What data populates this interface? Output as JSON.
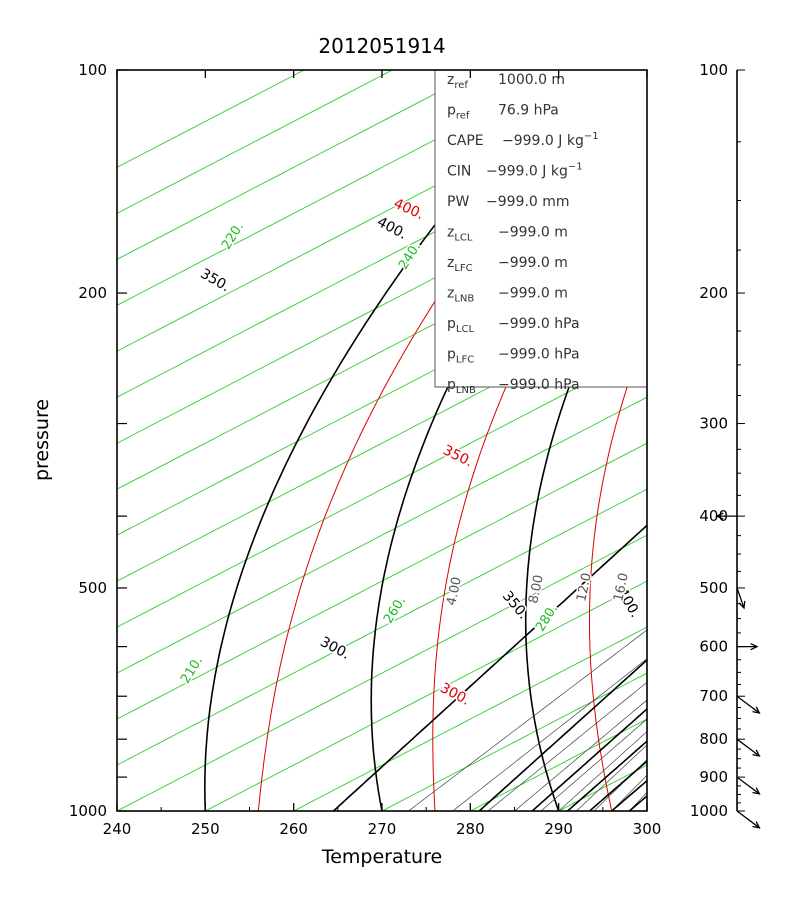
{
  "chart_data": {
    "type": "skew-t",
    "title": "2012051914",
    "xlabel": "Temperature",
    "ylabel": "pressure",
    "x_ticks": [
      "240",
      "250",
      "260",
      "270",
      "280",
      "290",
      "300"
    ],
    "xlim": [
      240,
      300
    ],
    "y_ticks": [
      "100",
      "200",
      "500",
      "1000"
    ],
    "ylim": [
      1000,
      100
    ],
    "y_scale": "log",
    "wind_axis_ticks": [
      "100",
      "200",
      "300",
      "400",
      "500",
      "600",
      "700",
      "800",
      "900",
      "1000"
    ],
    "wind_barbs": [
      {
        "pressure": 400,
        "direction_to": "west",
        "speed": "light"
      },
      {
        "pressure": 500,
        "direction_to": "south-southeast",
        "speed": "light"
      },
      {
        "pressure": 600,
        "direction_to": "east",
        "speed": "light"
      },
      {
        "pressure": 700,
        "direction_to": "southeast",
        "speed": "light"
      },
      {
        "pressure": 800,
        "direction_to": "southeast",
        "speed": "light"
      },
      {
        "pressure": 900,
        "direction_to": "southeast",
        "speed": "light"
      },
      {
        "pressure": 1000,
        "direction_to": "southeast",
        "speed": "light"
      }
    ],
    "isotherm_labels": [
      {
        "value": "210.",
        "color": "#22bb22"
      },
      {
        "value": "220.",
        "color": "#22bb22"
      },
      {
        "value": "240.",
        "color": "#22bb22"
      },
      {
        "value": "260.",
        "color": "#22bb22"
      },
      {
        "value": "280.",
        "color": "#22bb22"
      }
    ],
    "dry_adiabat_labels": [
      "300.",
      "350.",
      "400."
    ],
    "dry_adiabat_color": "#000000",
    "moist_adiabat_labels": [
      "300.",
      "350.",
      "400."
    ],
    "moist_adiabat_color": "#dd0000",
    "mixing_ratio_labels": [
      "4.00",
      "8.00",
      "12.0",
      "16.0"
    ],
    "info_box": [
      {
        "label": "z",
        "sub": "ref",
        "value": "1000.0 m"
      },
      {
        "label": "p",
        "sub": "ref",
        "value": "76.9 hPa"
      },
      {
        "label": "CAPE",
        "sub": "",
        "value": "−999.0 J kg",
        "sup": "−1"
      },
      {
        "label": "CIN",
        "sub": "",
        "value": "−999.0 J kg",
        "sup": "−1"
      },
      {
        "label": "PW",
        "sub": "",
        "value": "−999.0 mm"
      },
      {
        "label": "z",
        "sub": "LCL",
        "value": "−999.0 m"
      },
      {
        "label": "z",
        "sub": "LFC",
        "value": "−999.0 m"
      },
      {
        "label": "z",
        "sub": "LNB",
        "value": "−999.0 m"
      },
      {
        "label": "p",
        "sub": "LCL",
        "value": "−999.0 hPa"
      },
      {
        "label": "p",
        "sub": "LFC",
        "value": "−999.0 hPa"
      },
      {
        "label": "p",
        "sub": "LNB",
        "value": "−999.0 hPa"
      }
    ]
  }
}
